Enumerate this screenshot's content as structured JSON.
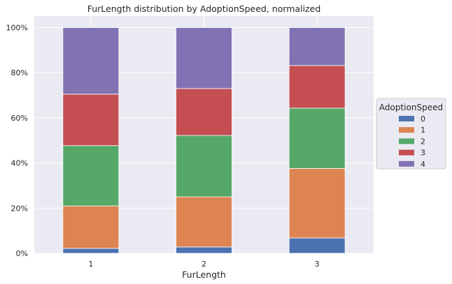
{
  "chart_data": {
    "type": "bar",
    "stacked": true,
    "title": "FurLength distribution by AdoptionSpeed, normalized",
    "xlabel": "FurLength",
    "ylabel": "",
    "categories": [
      "1",
      "2",
      "3"
    ],
    "ylim": [
      0,
      1
    ],
    "yticks": [
      0,
      0.2,
      0.4,
      0.6,
      0.8,
      1.0
    ],
    "ytick_labels": [
      "0%",
      "20%",
      "40%",
      "60%",
      "80%",
      "100%"
    ],
    "grid": true,
    "legend": {
      "title": "AdoptionSpeed",
      "placement": "center-right-outside"
    },
    "series": [
      {
        "name": "0",
        "color": "#4c72b0",
        "values": [
          0.022,
          0.028,
          0.068
        ]
      },
      {
        "name": "1",
        "color": "#dd8452",
        "values": [
          0.188,
          0.222,
          0.308
        ]
      },
      {
        "name": "2",
        "color": "#55a868",
        "values": [
          0.267,
          0.272,
          0.267
        ]
      },
      {
        "name": "3",
        "color": "#c44e52",
        "values": [
          0.228,
          0.208,
          0.189
        ]
      },
      {
        "name": "4",
        "color": "#8172b3",
        "values": [
          0.295,
          0.27,
          0.168
        ]
      }
    ]
  }
}
